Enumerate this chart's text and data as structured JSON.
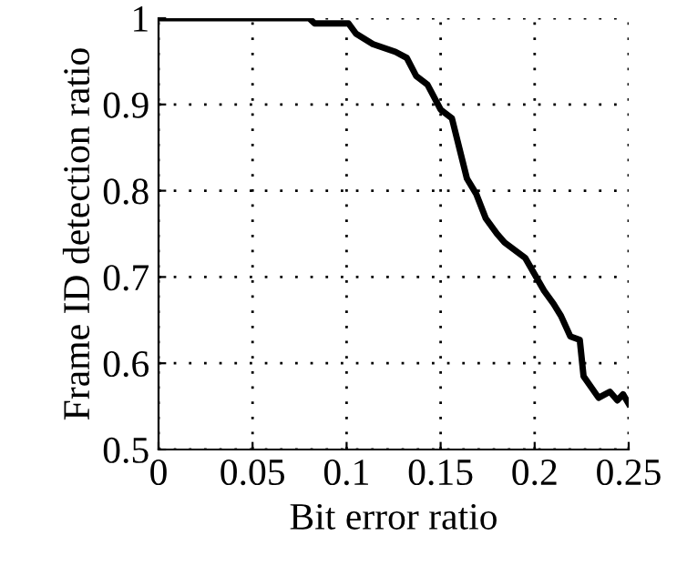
{
  "chart_data": {
    "type": "line",
    "xlabel": "Bit error ratio",
    "ylabel": "Frame ID detection ratio",
    "series": [
      {
        "color": "#000000",
        "x": [
          0,
          0.02,
          0.05,
          0.08,
          0.083,
          0.101,
          0.105,
          0.114,
          0.126,
          0.132,
          0.137,
          0.143,
          0.15,
          0.156,
          0.164,
          0.169,
          0.174,
          0.18,
          0.184,
          0.195,
          0.205,
          0.21,
          0.214,
          0.219,
          0.224,
          0.226,
          0.234,
          0.24,
          0.244,
          0.247,
          0.25
        ],
        "values": [
          1,
          1,
          1,
          1,
          0.994,
          0.994,
          0.982,
          0.97,
          0.961,
          0.954,
          0.933,
          0.923,
          0.894,
          0.884,
          0.814,
          0.796,
          0.768,
          0.75,
          0.74,
          0.722,
          0.684,
          0.669,
          0.655,
          0.631,
          0.627,
          0.585,
          0.56,
          0.567,
          0.557,
          0.564,
          0.553
        ]
      }
    ],
    "xlim": [
      0,
      0.25
    ],
    "ylim": [
      0.5,
      1
    ],
    "xticks": [
      0,
      0.05,
      0.1,
      0.15,
      0.2,
      0.25
    ],
    "yticks": [
      0.5,
      0.6,
      0.7,
      0.8,
      0.9,
      1
    ],
    "grid": true,
    "line_style": "solid",
    "marker": "none"
  }
}
